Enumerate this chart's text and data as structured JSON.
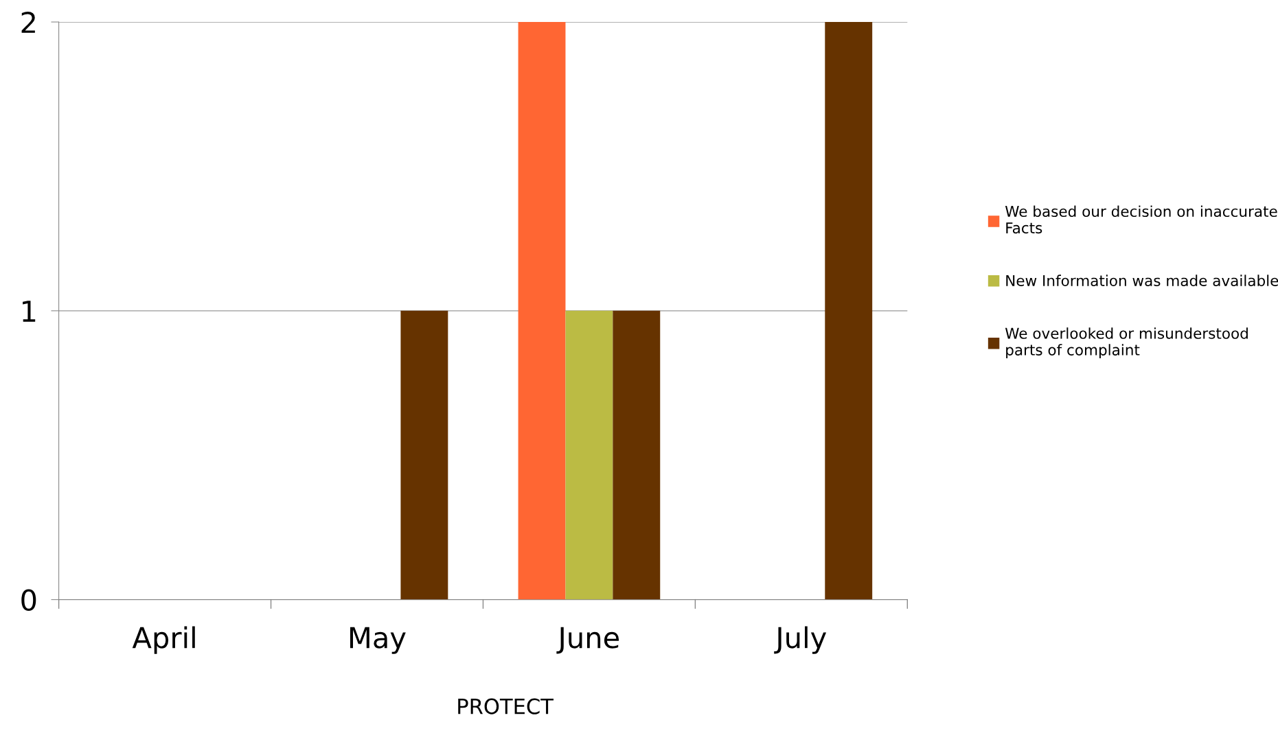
{
  "chart_data": {
    "type": "bar",
    "categories": [
      "April",
      "May",
      "June",
      "July"
    ],
    "series": [
      {
        "name": "We based our decision on inaccurate Facts",
        "color": "#ff6633",
        "values": [
          0,
          0,
          2,
          0
        ]
      },
      {
        "name": "New Information was made available",
        "color": "#bbbb44",
        "values": [
          0,
          0,
          1,
          0
        ]
      },
      {
        "name": "We overlooked or misunderstood parts of complaint",
        "color": "#663300",
        "values": [
          0,
          1,
          1,
          2
        ]
      }
    ],
    "ylim": [
      0,
      2
    ],
    "yticks": [
      0,
      1,
      2
    ],
    "grid": "y",
    "legend": "right",
    "annotations": [
      "PROTECT"
    ]
  }
}
